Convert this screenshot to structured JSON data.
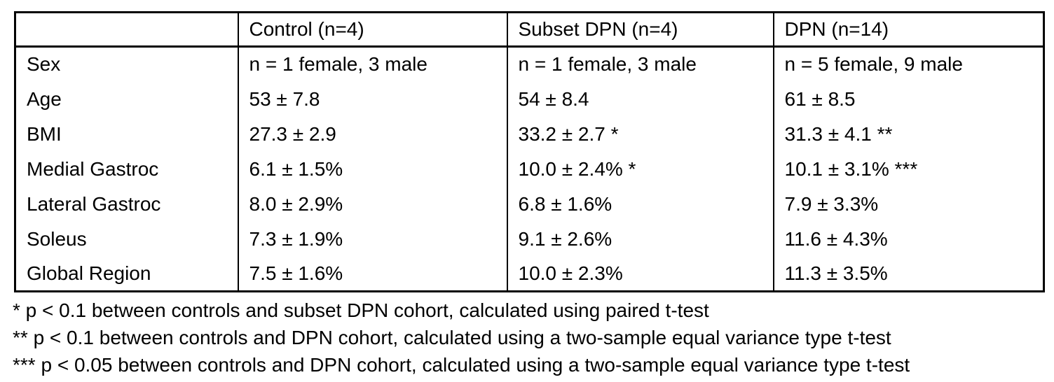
{
  "table": {
    "columns": [
      "",
      "Control (n=4)",
      "Subset DPN (n=4)",
      "DPN (n=14)"
    ],
    "rows": [
      {
        "label": "Sex",
        "values": [
          "n = 1 female, 3 male",
          "n = 1 female, 3 male",
          "n = 5 female, 9 male"
        ]
      },
      {
        "label": "Age",
        "values": [
          "53 ± 7.8",
          "54 ± 8.4",
          "61 ± 8.5"
        ]
      },
      {
        "label": "BMI",
        "values": [
          "27.3 ± 2.9",
          "33.2 ± 2.7 *",
          "31.3 ± 4.1 **"
        ]
      },
      {
        "label": "Medial Gastroc",
        "values": [
          "6.1 ± 1.5%",
          "10.0 ± 2.4% *",
          "10.1 ± 3.1% ***"
        ]
      },
      {
        "label": "Lateral Gastroc",
        "values": [
          "8.0 ± 2.9%",
          "6.8 ± 1.6%",
          "7.9 ± 3.3%"
        ]
      },
      {
        "label": "Soleus",
        "values": [
          "7.3 ± 1.9%",
          "9.1 ± 2.6%",
          "11.6 ± 4.3%"
        ]
      },
      {
        "label": "Global Region",
        "values": [
          "7.5 ± 1.6%",
          "10.0 ± 2.3%",
          "11.3 ± 3.5%"
        ]
      }
    ]
  },
  "footnotes": [
    "* p < 0.1 between controls and subset DPN cohort, calculated using paired t-test",
    "** p < 0.1 between controls and DPN cohort, calculated using a two-sample equal variance type t-test",
    "*** p < 0.05 between controls and DPN cohort, calculated using a two-sample equal variance type t-test"
  ],
  "colors": {
    "text": "#000000",
    "border": "#000000",
    "background": "#ffffff"
  }
}
